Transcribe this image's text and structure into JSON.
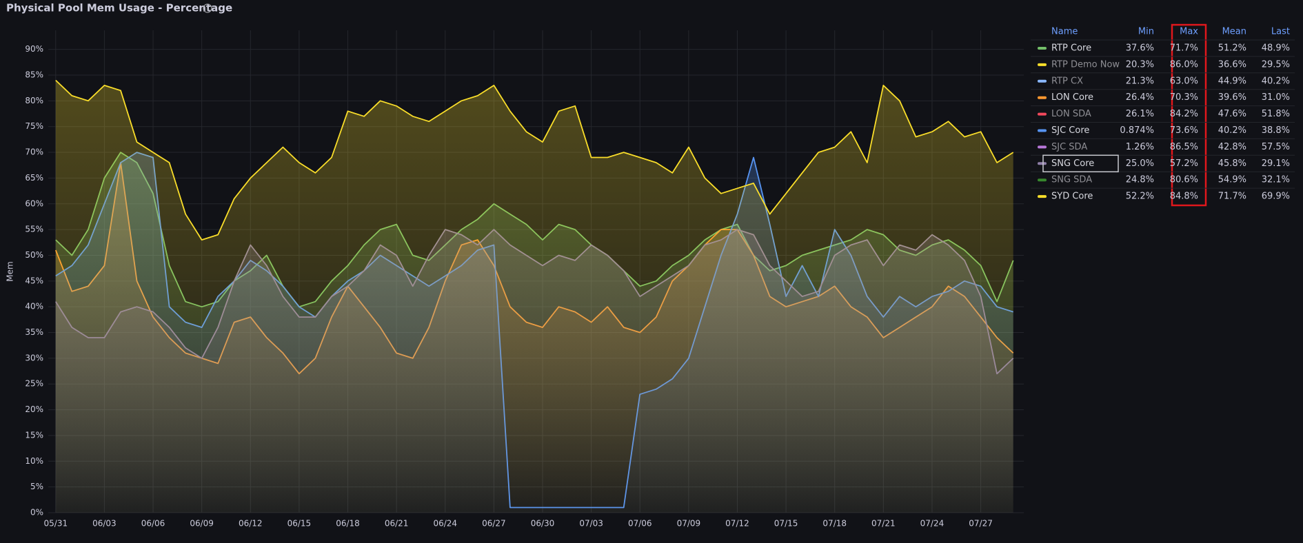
{
  "chart_data": {
    "type": "line",
    "title": "Physical Pool Mem Usage - Percentage",
    "y_label": "Mem",
    "x": [
      "05/31",
      null,
      null,
      "06/03",
      null,
      null,
      "06/06",
      null,
      null,
      "06/09",
      null,
      null,
      "06/12",
      null,
      null,
      "06/15",
      null,
      null,
      "06/18",
      null,
      null,
      "06/21",
      null,
      null,
      "06/24",
      null,
      null,
      "06/27",
      null,
      null,
      "06/30",
      null,
      null,
      "07/03",
      null,
      null,
      "07/06",
      null,
      null,
      "07/09",
      null,
      null,
      "07/12",
      null,
      null,
      "07/15",
      null,
      null,
      "07/18",
      null,
      null,
      "07/21",
      null,
      null,
      "07/24",
      null,
      null,
      "07/27",
      null,
      null
    ],
    "ylim": [
      0,
      93.7
    ],
    "yticks": [
      {
        "value": 0,
        "label": "0%"
      },
      {
        "value": 5,
        "label": "5%"
      },
      {
        "value": 10,
        "label": "10%"
      },
      {
        "value": 15,
        "label": "15%"
      },
      {
        "value": 20,
        "label": "20%"
      },
      {
        "value": 25,
        "label": "25%"
      },
      {
        "value": 30,
        "label": "30%"
      },
      {
        "value": 35,
        "label": "35%"
      },
      {
        "value": 40,
        "label": "40%"
      },
      {
        "value": 45,
        "label": "45%"
      },
      {
        "value": 50,
        "label": "50%"
      },
      {
        "value": 55,
        "label": "55%"
      },
      {
        "value": 60,
        "label": "60%"
      },
      {
        "value": 65,
        "label": "65%"
      },
      {
        "value": 70,
        "label": "70%"
      },
      {
        "value": 75,
        "label": "75%"
      },
      {
        "value": 80,
        "label": "80%"
      },
      {
        "value": 85,
        "label": "85%"
      },
      {
        "value": 90,
        "label": "90%"
      }
    ],
    "grid": true,
    "legend_columns": [
      "Name",
      "Min",
      "Max",
      "Mean",
      "Last"
    ],
    "series": [
      {
        "name": "RTP Core",
        "color": "#73bf69",
        "stats": [
          "37.6%",
          "71.7%",
          "51.2%",
          "48.9%"
        ],
        "values": [
          53,
          50,
          55,
          65,
          70,
          68,
          62,
          48,
          41,
          40,
          41,
          45,
          47,
          50,
          44,
          40,
          41,
          45,
          48,
          52,
          55,
          56,
          50,
          49,
          52,
          55,
          57,
          60,
          58,
          56,
          53,
          56,
          55,
          52,
          50,
          47,
          44,
          45,
          48,
          50,
          53,
          55,
          56,
          50,
          47,
          48,
          50,
          51,
          52,
          53,
          55,
          54,
          51,
          50,
          52,
          53,
          51,
          48,
          41,
          49
        ]
      },
      {
        "name": "RTP Demo Now",
        "color": "#fade2a",
        "hidden": true,
        "stats": [
          "20.3%",
          "86.0%",
          "36.6%",
          "29.5%"
        ]
      },
      {
        "name": "RTP CX",
        "color": "#8ab8ff",
        "hidden": true,
        "stats": [
          "21.3%",
          "63.0%",
          "44.9%",
          "40.2%"
        ]
      },
      {
        "name": "LON Core",
        "color": "#ff9830",
        "stats": [
          "26.4%",
          "70.3%",
          "39.6%",
          "31.0%"
        ],
        "values": [
          51,
          43,
          44,
          48,
          68,
          45,
          38,
          34,
          31,
          30,
          29,
          37,
          38,
          34,
          31,
          27,
          30,
          38,
          44,
          40,
          36,
          31,
          30,
          36,
          45,
          52,
          53,
          48,
          40,
          37,
          36,
          40,
          39,
          37,
          40,
          36,
          35,
          38,
          45,
          48,
          52,
          55,
          55,
          50,
          42,
          40,
          41,
          42,
          44,
          40,
          38,
          34,
          36,
          38,
          40,
          44,
          42,
          38,
          34,
          31
        ]
      },
      {
        "name": "LON SDA",
        "color": "#f2495c",
        "hidden": true,
        "stats": [
          "26.1%",
          "84.2%",
          "47.6%",
          "51.8%"
        ]
      },
      {
        "name": "SJC Core",
        "color": "#5794f2",
        "stats": [
          "0.874%",
          "73.6%",
          "40.2%",
          "38.8%"
        ],
        "values": [
          46,
          48,
          52,
          60,
          68,
          70,
          69,
          40,
          37,
          36,
          42,
          45,
          49,
          47,
          44,
          40,
          38,
          42,
          45,
          47,
          50,
          48,
          46,
          44,
          46,
          48,
          51,
          52,
          1,
          1,
          1,
          1,
          1,
          1,
          1,
          1,
          23,
          24,
          26,
          30,
          40,
          50,
          58,
          69,
          56,
          42,
          48,
          42,
          55,
          50,
          42,
          38,
          42,
          40,
          42,
          43,
          45,
          44,
          40,
          39
        ]
      },
      {
        "name": "SJC SDA",
        "color": "#b877d9",
        "hidden": true,
        "stats": [
          "1.26%",
          "86.5%",
          "42.8%",
          "57.5%"
        ]
      },
      {
        "name": "SNG Core",
        "color": "#8f7fa8",
        "stats": [
          "25.0%",
          "57.2%",
          "45.8%",
          "29.1%"
        ],
        "values": [
          41,
          36,
          34,
          34,
          39,
          40,
          39,
          36,
          32,
          30,
          36,
          45,
          52,
          48,
          42,
          38,
          38,
          42,
          44,
          47,
          52,
          50,
          44,
          50,
          55,
          54,
          52,
          55,
          52,
          50,
          48,
          50,
          49,
          52,
          50,
          47,
          42,
          44,
          46,
          48,
          52,
          53,
          55,
          54,
          48,
          45,
          42,
          43,
          50,
          52,
          53,
          48,
          52,
          51,
          54,
          52,
          49,
          42,
          27,
          30
        ]
      },
      {
        "name": "SNG SDA",
        "color": "#37872d",
        "hidden": true,
        "stats": [
          "24.8%",
          "80.6%",
          "54.9%",
          "32.1%"
        ]
      },
      {
        "name": "SYD Core",
        "color": "#fade2a",
        "stats": [
          "52.2%",
          "84.8%",
          "71.7%",
          "69.9%"
        ],
        "values": [
          84,
          81,
          80,
          83,
          82,
          72,
          70,
          68,
          58,
          53,
          54,
          61,
          65,
          68,
          71,
          68,
          66,
          69,
          78,
          77,
          80,
          79,
          77,
          76,
          78,
          80,
          81,
          83,
          78,
          74,
          72,
          78,
          79,
          69,
          69,
          70,
          69,
          68,
          66,
          71,
          65,
          62,
          63,
          64,
          58,
          62,
          66,
          70,
          71,
          74,
          68,
          83,
          80,
          73,
          74,
          76,
          73,
          74,
          68,
          70
        ]
      }
    ]
  }
}
